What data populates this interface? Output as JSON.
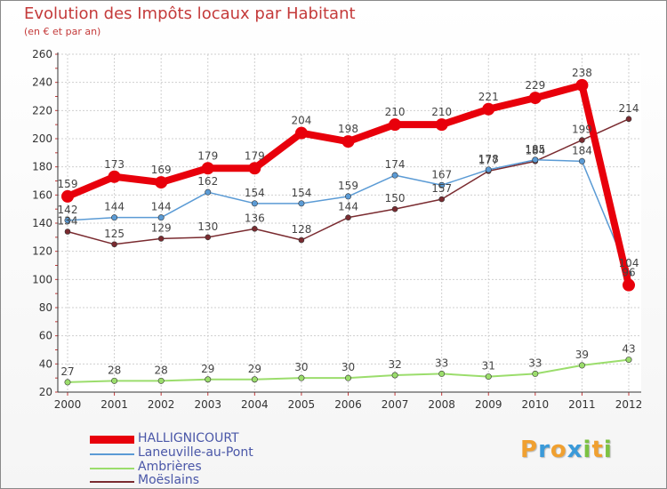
{
  "header": {
    "title": "Evolution des Impôts locaux par Habitant",
    "subtitle": "(en € et par an)"
  },
  "logo": {
    "letters": [
      "P",
      "r",
      "o",
      "x",
      "i",
      "t",
      "i"
    ],
    "colors": [
      "#f0a030",
      "#3a9ad9",
      "#f0a030",
      "#3a9ad9",
      "#7cc242",
      "#f0a030",
      "#7cc242"
    ]
  },
  "chart_data": {
    "type": "line",
    "x": [
      "2000",
      "2001",
      "2002",
      "2003",
      "2004",
      "2005",
      "2006",
      "2007",
      "2008",
      "2009",
      "2010",
      "2011",
      "2012"
    ],
    "ylim": [
      20,
      260
    ],
    "yticks": [
      "20",
      "40",
      "60",
      "80",
      "100",
      "120",
      "140",
      "160",
      "180",
      "200",
      "220",
      "240",
      "260"
    ],
    "grid": true,
    "legend_position": "bottom-left",
    "series": [
      {
        "name": "HALLIGNICOURT",
        "color": "#e8000b",
        "values": [
          159,
          173,
          169,
          179,
          179,
          204,
          198,
          210,
          210,
          221,
          229,
          238,
          96
        ],
        "labels": [
          "159",
          "173",
          "169",
          "179",
          "179",
          "204",
          "198",
          "210",
          "210",
          "221",
          "229",
          "238",
          "96"
        ]
      },
      {
        "name": "Laneuville-au-Pont",
        "color": "#5b9bd5",
        "values": [
          142,
          144,
          144,
          162,
          154,
          154,
          159,
          174,
          167,
          178,
          185,
          184,
          104
        ],
        "labels": [
          "142",
          "144",
          "144",
          "162",
          "154",
          "154",
          "159",
          "174",
          "167",
          "178",
          "185",
          "184",
          "104"
        ]
      },
      {
        "name": "Ambrières",
        "color": "#9bdd6c",
        "values": [
          27,
          28,
          28,
          29,
          29,
          30,
          30,
          32,
          33,
          31,
          33,
          39,
          43
        ],
        "labels": [
          "27",
          "28",
          "28",
          "29",
          "29",
          "30",
          "30",
          "32",
          "33",
          "31",
          "33",
          "39",
          "43"
        ]
      },
      {
        "name": "Moëslains",
        "color": "#7a2b30",
        "values": [
          134,
          125,
          129,
          130,
          136,
          128,
          144,
          150,
          157,
          177,
          184,
          199,
          214
        ],
        "labels": [
          "134",
          "125",
          "129",
          "130",
          "136",
          "128",
          "144",
          "150",
          "157",
          "177",
          "184",
          "199",
          "214"
        ]
      }
    ]
  }
}
